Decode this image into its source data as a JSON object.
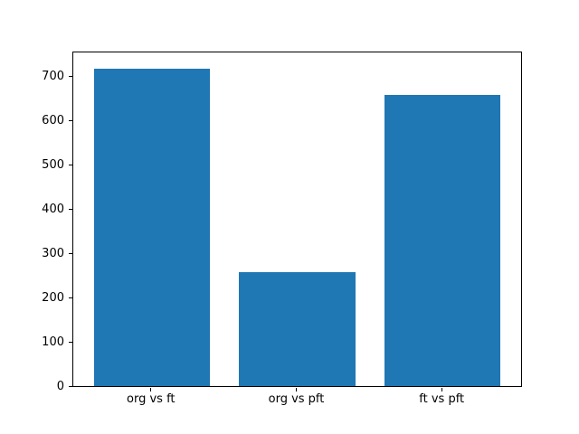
{
  "chart_data": {
    "type": "bar",
    "categories": [
      "org vs ft",
      "org vs pft",
      "ft vs pft"
    ],
    "values": [
      718,
      257,
      657
    ],
    "title": "",
    "xlabel": "",
    "ylabel": "",
    "yticks": [
      0,
      100,
      200,
      300,
      400,
      500,
      600,
      700
    ],
    "ylim": [
      0,
      754
    ],
    "xlim": [
      -0.54,
      2.54
    ],
    "bar_width": 0.8,
    "bar_color": "#1f77b4",
    "grid": false,
    "legend": "none"
  },
  "colors": {
    "background": "#ffffff",
    "axis": "#000000",
    "tick_text": "#000000",
    "bar": "#1f77b4"
  }
}
